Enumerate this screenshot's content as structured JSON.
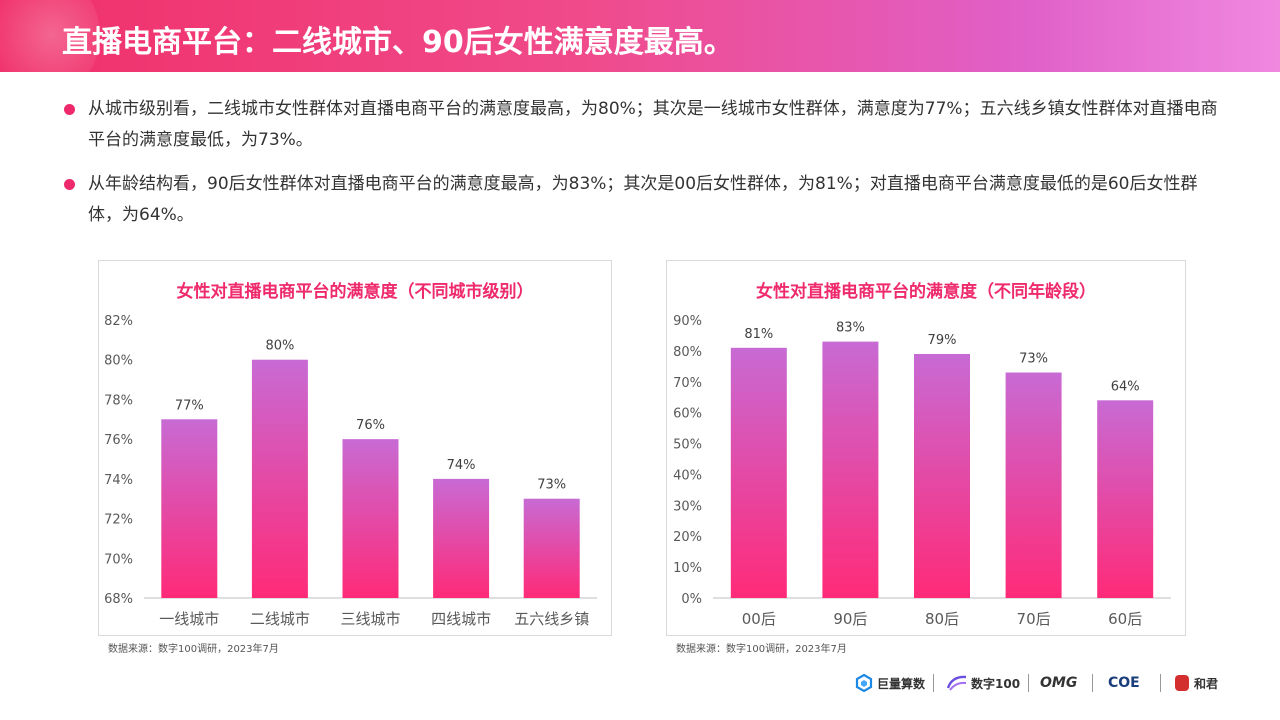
{
  "header": {
    "title": "直播电商平台：二线城市、90后女性满意度最高。"
  },
  "bullets": [
    "从城市级别看，二线城市女性群体对直播电商平台的满意度最高，为80%；其次是一线城市女性群体，满意度为77%；五六线乡镇女性群体对直播电商平台的满意度最低，为73%。",
    "从年龄结构看，90后女性群体对直播电商平台的满意度最高，为83%；其次是00后女性群体，为81%；对直播电商平台满意度最低的是60后女性群体，为64%。"
  ],
  "source_left": "数据来源：数字100调研，2023年7月",
  "source_right": "数据来源：数字100调研，2023年7月",
  "chart_data": [
    {
      "type": "bar",
      "title": "女性对直播电商平台的满意度（不同城市级别）",
      "categories": [
        "一线城市",
        "二线城市",
        "三线城市",
        "四线城市",
        "五六线乡镇"
      ],
      "values": [
        77,
        80,
        76,
        74,
        73
      ],
      "data_labels": [
        "77%",
        "80%",
        "76%",
        "74%",
        "73%"
      ],
      "ylim": [
        68,
        82
      ],
      "yticks": [
        "68%",
        "70%",
        "72%",
        "74%",
        "76%",
        "78%",
        "80%",
        "82%"
      ],
      "grid": false,
      "colors": {
        "top": "#c86ad4",
        "bottom": "#ff2a78"
      }
    },
    {
      "type": "bar",
      "title": "女性对直播电商平台的满意度（不同年龄段）",
      "categories": [
        "00后",
        "90后",
        "80后",
        "70后",
        "60后"
      ],
      "values": [
        81,
        83,
        79,
        73,
        64
      ],
      "data_labels": [
        "81%",
        "83%",
        "79%",
        "73%",
        "64%"
      ],
      "ylim": [
        0,
        90
      ],
      "yticks": [
        "0%",
        "10%",
        "20%",
        "30%",
        "40%",
        "50%",
        "60%",
        "70%",
        "80%",
        "90%"
      ],
      "grid": false,
      "colors": {
        "top": "#c86ad4",
        "bottom": "#ff2a78"
      }
    }
  ],
  "footer": {
    "logos": [
      "巨量算数",
      "数字100",
      "OMG",
      "COE",
      "和君"
    ]
  }
}
